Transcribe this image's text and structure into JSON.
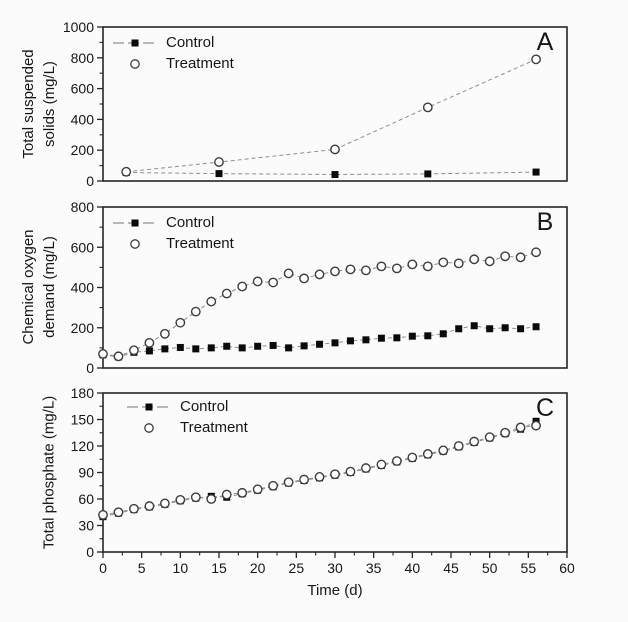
{
  "figure": {
    "background": "#fbfbfb",
    "xlabel": "Time (d)"
  },
  "colors": {
    "axis": "#262626",
    "text": "#161616",
    "line": "#8f8f8f",
    "marker_fill": "#0a0a0a",
    "circle_stroke": "#3c3c3c",
    "circle_fill": "#ffffff"
  },
  "chart_data": [
    {
      "type": "line",
      "panel_label": "A",
      "ylabel_lines": [
        "Total suspended",
        "solids (mg/L)"
      ],
      "ylim": [
        0,
        1000
      ],
      "yticks": [
        0,
        200,
        400,
        600,
        800,
        1000
      ],
      "ytick_minor_step": 100,
      "xlim": [
        0,
        60
      ],
      "legend_position": "top-left",
      "grid": false,
      "series": [
        {
          "name": "Control",
          "marker": "square",
          "x": [
            3,
            15,
            30,
            42,
            56
          ],
          "y": [
            55,
            48,
            42,
            46,
            58
          ]
        },
        {
          "name": "Treatment",
          "marker": "circle",
          "x": [
            3,
            15,
            30,
            42,
            56
          ],
          "y": [
            60,
            123,
            205,
            478,
            790
          ]
        }
      ]
    },
    {
      "type": "line",
      "panel_label": "B",
      "ylabel_lines": [
        "Chemical oxygen",
        "demand (mg/L)"
      ],
      "ylim": [
        0,
        800
      ],
      "yticks": [
        0,
        200,
        400,
        600,
        800
      ],
      "ytick_minor_step": 100,
      "xlim": [
        0,
        60
      ],
      "legend_position": "top-left",
      "grid": false,
      "series": [
        {
          "name": "Control",
          "marker": "square",
          "x": [
            0,
            2,
            4,
            6,
            8,
            10,
            12,
            14,
            16,
            18,
            20,
            22,
            24,
            26,
            28,
            30,
            32,
            34,
            36,
            38,
            40,
            42,
            44,
            46,
            48,
            50,
            52,
            54,
            56
          ],
          "y": [
            65,
            55,
            78,
            85,
            95,
            102,
            95,
            100,
            108,
            100,
            108,
            112,
            100,
            110,
            118,
            125,
            135,
            140,
            148,
            150,
            158,
            160,
            170,
            195,
            210,
            195,
            200,
            195,
            205
          ]
        },
        {
          "name": "Treatment",
          "marker": "circle",
          "x": [
            0,
            2,
            4,
            6,
            8,
            10,
            12,
            14,
            16,
            18,
            20,
            22,
            24,
            26,
            28,
            30,
            32,
            34,
            36,
            38,
            40,
            42,
            44,
            46,
            48,
            50,
            52,
            54,
            56
          ],
          "y": [
            70,
            58,
            88,
            125,
            170,
            225,
            280,
            330,
            370,
            405,
            430,
            425,
            470,
            445,
            465,
            480,
            490,
            485,
            505,
            495,
            515,
            505,
            525,
            520,
            540,
            530,
            555,
            550,
            575
          ]
        }
      ]
    },
    {
      "type": "line",
      "panel_label": "C",
      "ylabel_lines": [
        "Total phosphate (mg/L)"
      ],
      "ylim": [
        0,
        180
      ],
      "yticks": [
        0,
        30,
        60,
        90,
        120,
        150,
        180
      ],
      "ytick_minor_step": 15,
      "xlim": [
        0,
        60
      ],
      "xticks": [
        0,
        5,
        10,
        15,
        20,
        25,
        30,
        35,
        40,
        45,
        50,
        55,
        60
      ],
      "xtick_minor_step": 2.5,
      "xlabel": "Time (d)",
      "legend_position": "top-left",
      "grid": false,
      "series": [
        {
          "name": "Control",
          "marker": "square",
          "x": [
            0,
            2,
            4,
            6,
            8,
            10,
            12,
            14,
            16,
            18,
            20,
            22,
            24,
            26,
            28,
            30,
            32,
            34,
            36,
            38,
            40,
            42,
            44,
            46,
            48,
            50,
            52,
            54,
            56
          ],
          "y": [
            40,
            44,
            48,
            51,
            54,
            58,
            61,
            63,
            62,
            66,
            70,
            74,
            78,
            81,
            84,
            87,
            90,
            94,
            98,
            102,
            106,
            110,
            114,
            119,
            124,
            129,
            134,
            139,
            148
          ]
        },
        {
          "name": "Treatment",
          "marker": "circle",
          "x": [
            0,
            2,
            4,
            6,
            8,
            10,
            12,
            14,
            16,
            18,
            20,
            22,
            24,
            26,
            28,
            30,
            32,
            34,
            36,
            38,
            40,
            42,
            44,
            46,
            48,
            50,
            52,
            54,
            56
          ],
          "y": [
            42,
            45,
            49,
            52,
            55,
            59,
            62,
            60,
            65,
            67,
            71,
            75,
            79,
            82,
            85,
            88,
            91,
            95,
            99,
            103,
            107,
            111,
            115,
            120,
            125,
            130,
            135,
            141,
            143
          ]
        }
      ]
    }
  ]
}
